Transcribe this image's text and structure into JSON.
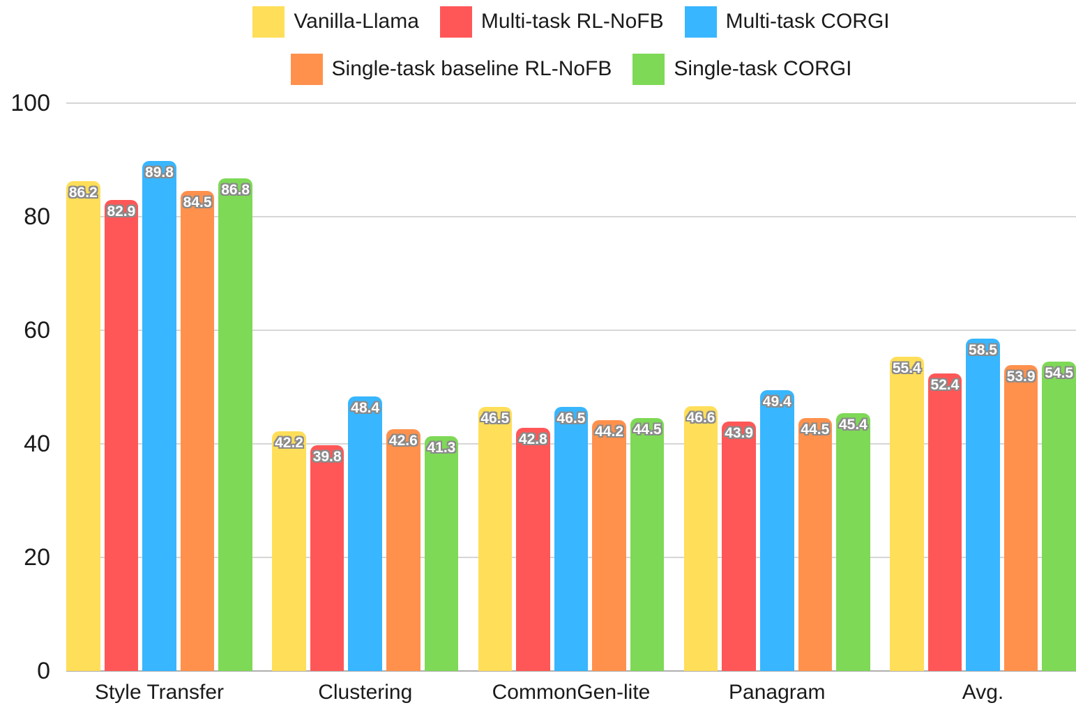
{
  "legend": {
    "rows": [
      [
        {
          "label": "Vanilla-Llama",
          "color": "#FFDE59"
        },
        {
          "label": "Multi-task RL-NoFB",
          "color": "#FF5757"
        },
        {
          "label": "Multi-task CORGI",
          "color": "#38B6FF"
        }
      ],
      [
        {
          "label": "Single-task baseline RL-NoFB",
          "color": "#FF914D"
        },
        {
          "label": "Single-task CORGI",
          "color": "#7ED957"
        }
      ]
    ]
  },
  "chart_data": {
    "type": "bar",
    "title": "",
    "xlabel": "",
    "ylabel": "",
    "categories": [
      "Style Transfer",
      "Clustering",
      "CommonGen-lite",
      "Panagram",
      "Avg."
    ],
    "series": [
      {
        "name": "Vanilla-Llama",
        "color": "#FFDE59",
        "values": [
          86.2,
          42.2,
          46.5,
          46.6,
          55.4
        ]
      },
      {
        "name": "Multi-task RL-NoFB",
        "color": "#FF5757",
        "values": [
          82.9,
          39.8,
          42.8,
          43.9,
          52.4
        ]
      },
      {
        "name": "Multi-task CORGI",
        "color": "#38B6FF",
        "values": [
          89.8,
          48.4,
          46.5,
          49.4,
          58.5
        ]
      },
      {
        "name": "Single-task baseline RL-NoFB",
        "color": "#FF914D",
        "values": [
          84.5,
          42.6,
          44.2,
          44.5,
          53.9
        ]
      },
      {
        "name": "Single-task CORGI",
        "color": "#7ED957",
        "values": [
          86.8,
          41.3,
          44.5,
          45.4,
          54.5
        ]
      }
    ],
    "y_ticks": [
      0,
      20,
      40,
      60,
      80,
      100
    ],
    "ylim": [
      0,
      100
    ],
    "grid": true,
    "value_labels": true,
    "legend_position": "top"
  },
  "colors": {
    "gridline": "#d6d6d6",
    "baseline": "#aeaeae",
    "text": "#1a1a1a",
    "value_label_fill": "#ffffff",
    "value_label_outline": "#8a8a8a",
    "background": "#ffffff"
  }
}
